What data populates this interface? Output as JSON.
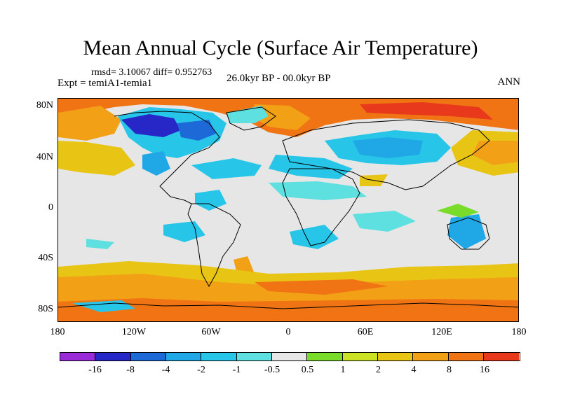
{
  "title": "Mean Annual Cycle (Surface Air Temperature)",
  "stats": "rmsd= 3.10067 diff= 0.952763",
  "experiment": "Expt = temiA1-temia1",
  "period": "26.0kyr BP - 00.0kyr BP",
  "season": "ANN",
  "lat_labels": [
    "80N",
    "40N",
    "0",
    "40S",
    "80S"
  ],
  "lon_labels": [
    "180",
    "120W",
    "60W",
    "0",
    "60E",
    "120E",
    "180"
  ],
  "colorbar": {
    "colors": [
      "#9a2bd8",
      "#2727c8",
      "#1e69d8",
      "#20a8e6",
      "#27c6e8",
      "#5ee0e0",
      "#e6e6e6",
      "#79dc2b",
      "#cae223",
      "#e8c514",
      "#f2a016",
      "#f07414",
      "#e8391c"
    ],
    "labels": [
      "-16",
      "-8",
      "-4",
      "-2",
      "-1",
      "-0.5",
      "0.5",
      "1",
      "2",
      "4",
      "8",
      "16"
    ]
  }
}
